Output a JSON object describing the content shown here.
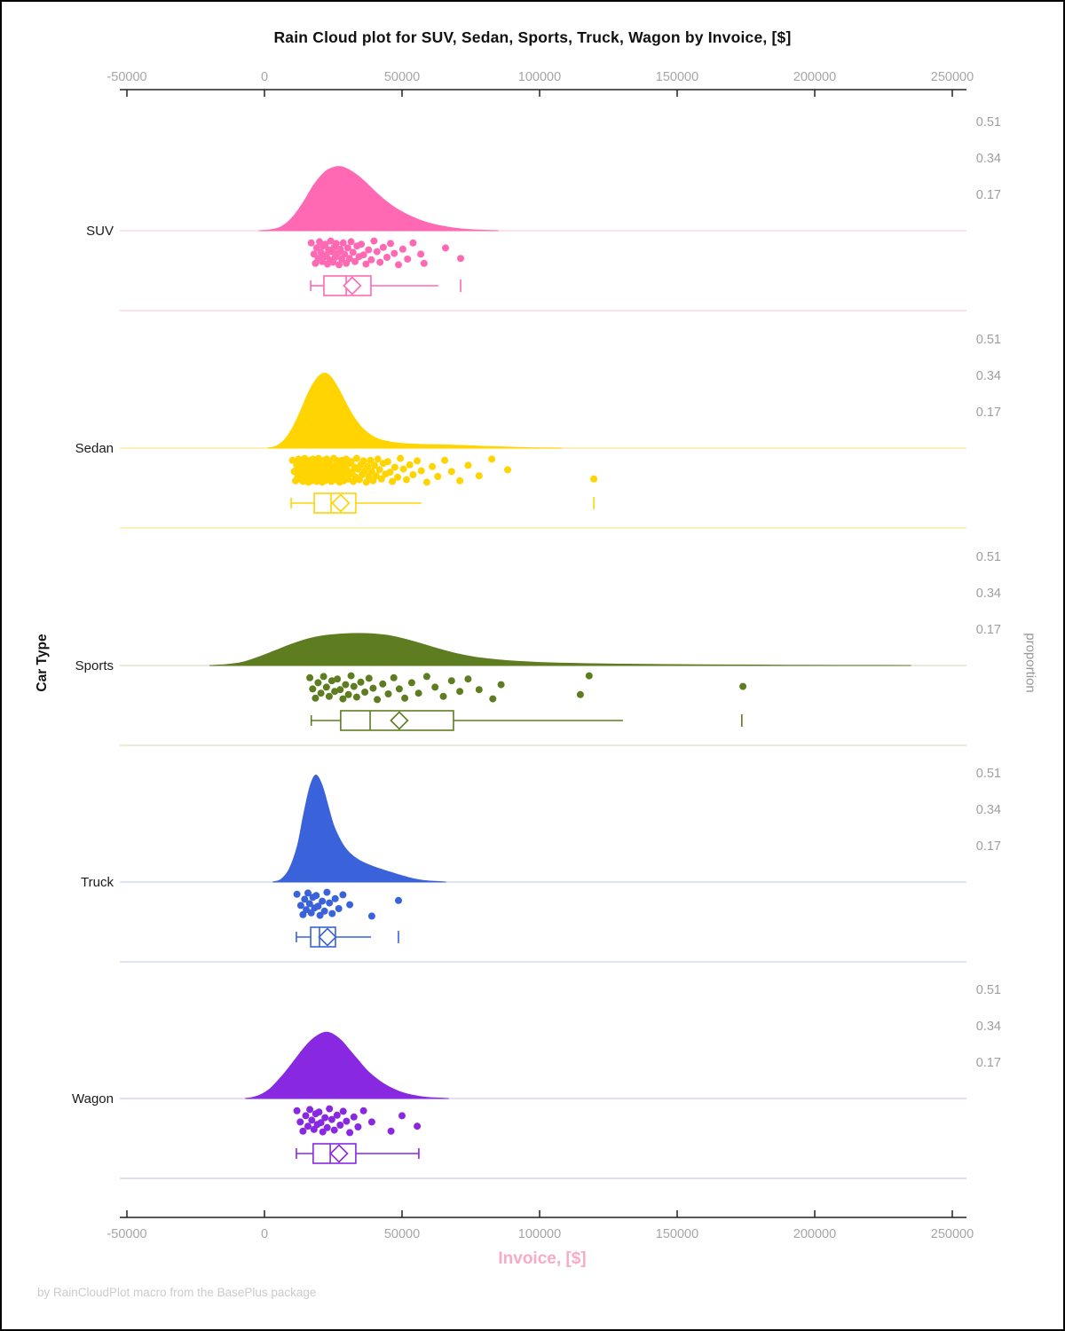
{
  "chart_data": {
    "type": "raincloud",
    "title": "Rain Cloud plot for SUV, Sedan, Sports, Truck, Wagon by Invoice, [$]",
    "xlabel": "Invoice, [$]",
    "ylabel_left": "Car Type",
    "ylabel_right": "proportion",
    "footer": "by RainCloudPlot macro from the BasePlus package",
    "x_range_usd": [
      -50000,
      250000
    ],
    "x_unit": "USD, data values below in thousands of USD",
    "x_ticks": [
      {
        "value": -50000,
        "label": "-50000"
      },
      {
        "value": 0,
        "label": "0"
      },
      {
        "value": 50000,
        "label": "50000"
      },
      {
        "value": 100000,
        "label": "100000"
      },
      {
        "value": 150000,
        "label": "150000"
      },
      {
        "value": 200000,
        "label": "200000"
      },
      {
        "value": 250000,
        "label": "250000"
      }
    ],
    "proportion_ticks": [
      {
        "value": 0.51,
        "label": "0.51"
      },
      {
        "value": 0.34,
        "label": "0.34"
      },
      {
        "value": 0.17,
        "label": "0.17"
      }
    ],
    "jitter_cycle": [
      0.1,
      0.55,
      0.92,
      0.3,
      0.72,
      0.05,
      0.48,
      0.85,
      0.22,
      0.65,
      0.15,
      0.58,
      0.95,
      0.38,
      0.78,
      0.02,
      0.45,
      0.88,
      0.28,
      0.68,
      0.12,
      0.52,
      0.98,
      0.35,
      0.75
    ],
    "panels": [
      {
        "label": "SUV",
        "color": "#FF69B4",
        "pale": "#FFC9E2",
        "density": [
          [
            -2,
            0
          ],
          [
            2,
            0.004
          ],
          [
            6,
            0.018
          ],
          [
            10,
            0.06
          ],
          [
            14,
            0.13
          ],
          [
            18,
            0.215
          ],
          [
            22,
            0.275
          ],
          [
            25,
            0.295
          ],
          [
            27,
            0.3
          ],
          [
            29,
            0.295
          ],
          [
            32,
            0.275
          ],
          [
            36,
            0.235
          ],
          [
            40,
            0.185
          ],
          [
            44,
            0.14
          ],
          [
            48,
            0.103
          ],
          [
            52,
            0.075
          ],
          [
            56,
            0.052
          ],
          [
            60,
            0.035
          ],
          [
            64,
            0.023
          ],
          [
            68,
            0.014
          ],
          [
            72,
            0.008
          ],
          [
            76,
            0.004
          ],
          [
            80,
            0.002
          ],
          [
            85,
            0
          ]
        ],
        "points_x": [
          17,
          18,
          18.5,
          19,
          19.5,
          20,
          20.5,
          21,
          21.3,
          21.8,
          22.1,
          22.5,
          22.9,
          23.3,
          23.7,
          24.1,
          24.5,
          24.9,
          25.3,
          25.7,
          26.1,
          26.6,
          27.1,
          27.6,
          28.1,
          28.6,
          29.1,
          29.7,
          30.3,
          30.9,
          31.5,
          32.2,
          32.9,
          33.6,
          34.4,
          35.2,
          36,
          36.9,
          37.8,
          38.8,
          39.8,
          40.9,
          42,
          43.2,
          44.5,
          45.8,
          47.2,
          48.7,
          50.3,
          52,
          54,
          56.8,
          58,
          65.8,
          71.3
        ],
        "box": {
          "whisker_low": 16.8,
          "q1": 21.6,
          "median": 29.7,
          "mean": 31.9,
          "q3": 38.7,
          "whisker_high": 63.2,
          "outliers": [
            71.3
          ],
          "right_cap": false
        }
      },
      {
        "label": "Sedan",
        "color": "#FFD400",
        "pale": "#FFE88F",
        "density": [
          [
            1,
            0
          ],
          [
            4,
            0.008
          ],
          [
            7,
            0.035
          ],
          [
            10,
            0.09
          ],
          [
            13,
            0.17
          ],
          [
            16,
            0.26
          ],
          [
            19,
            0.325
          ],
          [
            21.5,
            0.35
          ],
          [
            24,
            0.335
          ],
          [
            27,
            0.275
          ],
          [
            30,
            0.2
          ],
          [
            33,
            0.135
          ],
          [
            36,
            0.088
          ],
          [
            39,
            0.058
          ],
          [
            42,
            0.04
          ],
          [
            46,
            0.028
          ],
          [
            50,
            0.022
          ],
          [
            55,
            0.018
          ],
          [
            60,
            0.016
          ],
          [
            65,
            0.015
          ],
          [
            70,
            0.013
          ],
          [
            75,
            0.011
          ],
          [
            80,
            0.008
          ],
          [
            85,
            0.006
          ],
          [
            90,
            0.004
          ],
          [
            95,
            0.002
          ],
          [
            100,
            0.001
          ],
          [
            108,
            0
          ]
        ],
        "points_x": [
          10.2,
          10.8,
          11.3,
          11.7,
          12.1,
          12.4,
          12.7,
          13,
          13.2,
          13.4,
          13.6,
          13.8,
          14,
          14.2,
          14.4,
          14.6,
          14.8,
          15,
          15.2,
          15.4,
          15.6,
          15.8,
          16,
          16.2,
          16.4,
          16.6,
          16.8,
          17,
          17.2,
          17.4,
          17.6,
          17.8,
          18,
          18.2,
          18.4,
          18.6,
          18.8,
          19,
          19.2,
          19.4,
          19.6,
          19.8,
          20,
          20.2,
          20.4,
          20.6,
          20.8,
          21,
          21.2,
          21.4,
          21.6,
          21.8,
          22,
          22.2,
          22.4,
          22.6,
          22.8,
          23,
          23.2,
          23.4,
          23.7,
          24,
          24.3,
          24.6,
          24.9,
          25.2,
          25.5,
          25.8,
          26.1,
          26.4,
          26.7,
          27,
          27.3,
          27.6,
          27.9,
          28.2,
          28.5,
          28.8,
          29.1,
          29.4,
          29.7,
          30,
          30.3,
          30.7,
          31.1,
          31.5,
          31.9,
          32.3,
          32.7,
          33.1,
          33.5,
          34,
          34.5,
          35,
          35.5,
          36,
          36.5,
          37,
          37.5,
          38,
          38.5,
          39,
          39.5,
          40,
          40.6,
          41.2,
          41.8,
          42.5,
          43.2,
          44,
          44.8,
          45.6,
          46.5,
          47.4,
          48.4,
          49.4,
          50.5,
          51.6,
          52.8,
          54,
          55.5,
          57,
          59,
          61,
          63,
          65.5,
          68,
          71,
          74,
          78,
          82.6,
          88.4,
          119.7
        ],
        "box": {
          "whisker_low": 9.7,
          "q1": 18.1,
          "median": 24.2,
          "mean": 27.7,
          "q3": 33.2,
          "whisker_high": 57,
          "outliers": [
            119.7
          ],
          "right_cap": false
        }
      },
      {
        "label": "Sports",
        "color": "#5E7D20",
        "pale": "#D8E1C4",
        "density": [
          [
            -20,
            0
          ],
          [
            -14,
            0.004
          ],
          [
            -8,
            0.015
          ],
          [
            -2,
            0.04
          ],
          [
            4,
            0.07
          ],
          [
            10,
            0.1
          ],
          [
            16,
            0.125
          ],
          [
            22,
            0.14
          ],
          [
            28,
            0.147
          ],
          [
            34,
            0.15
          ],
          [
            40,
            0.147
          ],
          [
            46,
            0.138
          ],
          [
            52,
            0.12
          ],
          [
            58,
            0.098
          ],
          [
            64,
            0.075
          ],
          [
            70,
            0.055
          ],
          [
            76,
            0.04
          ],
          [
            82,
            0.03
          ],
          [
            88,
            0.023
          ],
          [
            94,
            0.018
          ],
          [
            100,
            0.014
          ],
          [
            108,
            0.011
          ],
          [
            116,
            0.009
          ],
          [
            124,
            0.007
          ],
          [
            132,
            0.006
          ],
          [
            140,
            0.005
          ],
          [
            150,
            0.004
          ],
          [
            160,
            0.003
          ],
          [
            170,
            0.0025
          ],
          [
            180,
            0.002
          ],
          [
            195,
            0.001
          ],
          [
            215,
            0.0005
          ],
          [
            235,
            0
          ]
        ],
        "points_x": [
          16.5,
          17.5,
          18.5,
          19.5,
          20.5,
          21.5,
          22.5,
          23.5,
          24.5,
          25.5,
          26.5,
          27.5,
          28.5,
          29.5,
          30.5,
          31.5,
          32.5,
          33.5,
          35,
          36.5,
          38,
          39.5,
          41,
          43,
          45,
          47,
          49,
          51,
          53.5,
          56,
          59,
          62,
          65,
          68,
          71,
          74,
          78,
          83,
          86,
          114.8,
          118,
          173.9
        ],
        "box": {
          "whisker_low": 17,
          "q1": 27.7,
          "median": 38.4,
          "mean": 49,
          "q3": 68.7,
          "whisker_high": 130.3,
          "outliers": [
            173.5
          ],
          "right_cap": false
        }
      },
      {
        "label": "Truck",
        "color": "#3A62DA",
        "pale": "#C6D4F0",
        "density": [
          [
            3,
            0
          ],
          [
            6,
            0.012
          ],
          [
            9,
            0.06
          ],
          [
            12,
            0.17
          ],
          [
            14,
            0.3
          ],
          [
            16,
            0.42
          ],
          [
            17.5,
            0.48
          ],
          [
            18.7,
            0.5
          ],
          [
            20,
            0.48
          ],
          [
            21.5,
            0.43
          ],
          [
            23,
            0.36
          ],
          [
            25,
            0.27
          ],
          [
            27,
            0.21
          ],
          [
            29,
            0.165
          ],
          [
            31,
            0.135
          ],
          [
            34,
            0.105
          ],
          [
            37,
            0.085
          ],
          [
            40,
            0.07
          ],
          [
            43,
            0.057
          ],
          [
            46,
            0.045
          ],
          [
            49,
            0.033
          ],
          [
            52,
            0.022
          ],
          [
            55,
            0.013
          ],
          [
            58,
            0.007
          ],
          [
            62,
            0.003
          ],
          [
            66,
            0
          ]
        ],
        "points_x": [
          11.8,
          13.2,
          14,
          14.6,
          15.2,
          15.8,
          16.4,
          17,
          17.6,
          18.2,
          18.8,
          19.5,
          20.2,
          21,
          21.8,
          22.7,
          23.6,
          24.6,
          25.7,
          27,
          28.5,
          31,
          39,
          48.7
        ],
        "box": {
          "whisker_low": 11.6,
          "q1": 16.8,
          "median": 20,
          "mean": 22.9,
          "q3": 25.8,
          "whisker_high": 38.7,
          "outliers": [
            48.7
          ],
          "right_cap": false
        }
      },
      {
        "label": "Wagon",
        "color": "#8928E1",
        "pale": "#DAC5EF",
        "density": [
          [
            -7,
            0
          ],
          [
            -4,
            0.006
          ],
          [
            -1,
            0.02
          ],
          [
            2,
            0.045
          ],
          [
            5,
            0.085
          ],
          [
            8,
            0.13
          ],
          [
            11,
            0.18
          ],
          [
            14,
            0.23
          ],
          [
            17,
            0.272
          ],
          [
            20,
            0.3
          ],
          [
            22.5,
            0.31
          ],
          [
            25,
            0.3
          ],
          [
            28,
            0.27
          ],
          [
            31,
            0.225
          ],
          [
            34,
            0.18
          ],
          [
            37,
            0.135
          ],
          [
            40,
            0.1
          ],
          [
            43,
            0.072
          ],
          [
            46,
            0.05
          ],
          [
            49,
            0.033
          ],
          [
            52,
            0.021
          ],
          [
            55,
            0.013
          ],
          [
            58,
            0.007
          ],
          [
            62,
            0.003
          ],
          [
            67,
            0
          ]
        ],
        "points_x": [
          11.8,
          13,
          14,
          15,
          15.8,
          16.5,
          17.2,
          18,
          18.6,
          19.2,
          19.8,
          20.5,
          21.2,
          22,
          22.8,
          23.6,
          24.5,
          25.4,
          26.4,
          27.5,
          28.6,
          29.8,
          31,
          32.5,
          34,
          36,
          39,
          46,
          50,
          55.5
        ],
        "box": {
          "whisker_low": 11.6,
          "q1": 17.7,
          "median": 23.9,
          "mean": 27.1,
          "q3": 33.2,
          "whisker_high": 56.1,
          "outliers": [],
          "right_cap": true
        }
      }
    ]
  }
}
